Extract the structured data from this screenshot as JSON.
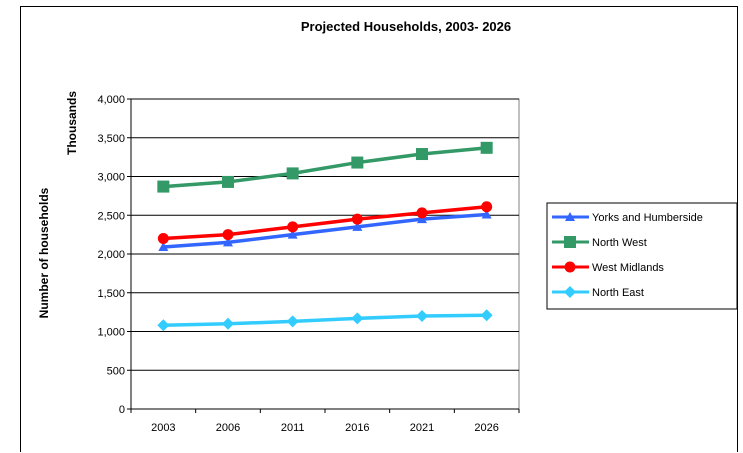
{
  "chart_data": {
    "type": "line",
    "title": "Projected Households, 2003- 2026",
    "ylabel": "Number of households",
    "yunit": "Thousands",
    "xlabel": "",
    "categories": [
      "2003",
      "2006",
      "2011",
      "2016",
      "2021",
      "2026"
    ],
    "ylim": [
      0,
      4000
    ],
    "yticks": [
      "0",
      "500",
      "1,000",
      "1,500",
      "2,000",
      "2,500",
      "3,000",
      "3,500",
      "4,000"
    ],
    "grid": "horizontal",
    "legend_position": "right",
    "series": [
      {
        "name": "Yorks and Humberside",
        "color": "#3366ff",
        "marker": "triangle",
        "values": [
          2090,
          2150,
          2250,
          2350,
          2450,
          2510
        ]
      },
      {
        "name": "North West",
        "color": "#339966",
        "marker": "square",
        "values": [
          2870,
          2930,
          3040,
          3180,
          3290,
          3370
        ]
      },
      {
        "name": "West Midlands",
        "color": "#ff0000",
        "marker": "circle",
        "values": [
          2200,
          2250,
          2350,
          2450,
          2530,
          2610
        ]
      },
      {
        "name": "North East",
        "color": "#33ccff",
        "marker": "diamond",
        "values": [
          1080,
          1100,
          1130,
          1170,
          1200,
          1210
        ]
      }
    ]
  }
}
